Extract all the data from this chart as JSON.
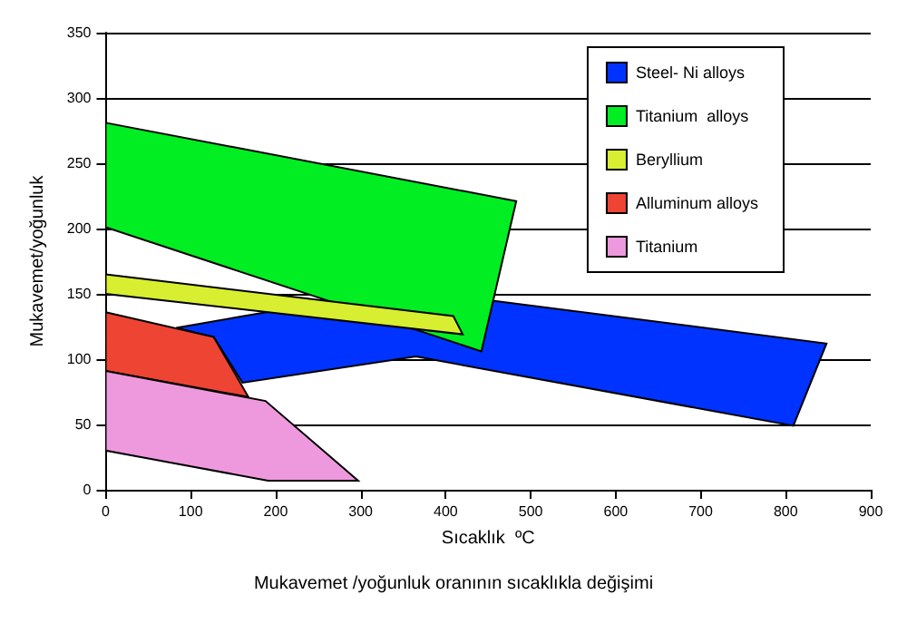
{
  "chart_data": {
    "type": "area",
    "title": "Mukavemet /yoğunluk oranının sıcaklıkla değişimi",
    "xlabel": "Sıcaklık  ºC",
    "ylabel": "Mukavemet/yoğunluk",
    "xlim": [
      0,
      900
    ],
    "xticks": [
      0,
      100,
      200,
      300,
      400,
      500,
      600,
      700,
      800,
      900
    ],
    "ylim": [
      0,
      350
    ],
    "yticks": [
      0,
      50,
      100,
      150,
      200,
      250,
      300,
      350
    ],
    "grid": "y",
    "legend": "top right",
    "series": [
      {
        "name": "Steel- Ni alloys",
        "color": "#0033ff",
        "x": [
          83,
          198,
          453,
          848,
          809,
          365,
          161,
          127
        ],
        "values": [
          124,
          137,
          145,
          112,
          49,
          102,
          82,
          117
        ]
      },
      {
        "name": "Titanium  alloys",
        "color": "#00ee22",
        "x": [
          0,
          483,
          442,
          0
        ],
        "values": [
          281,
          221,
          106,
          201
        ]
      },
      {
        "name": "Beryllium",
        "color": "#d8ee30",
        "x": [
          0,
          409,
          420,
          0
        ],
        "values": [
          165,
          133,
          119,
          150
        ]
      },
      {
        "name": "Alluminum alloys",
        "color": "#ee4433",
        "x": [
          0,
          127,
          168,
          0
        ],
        "values": [
          136,
          117,
          71,
          91
        ]
      },
      {
        "name": "Titanium",
        "color": "#ee99dd",
        "x": [
          0,
          188,
          297,
          191,
          0
        ],
        "values": [
          91,
          68,
          7,
          7,
          30
        ]
      }
    ]
  }
}
